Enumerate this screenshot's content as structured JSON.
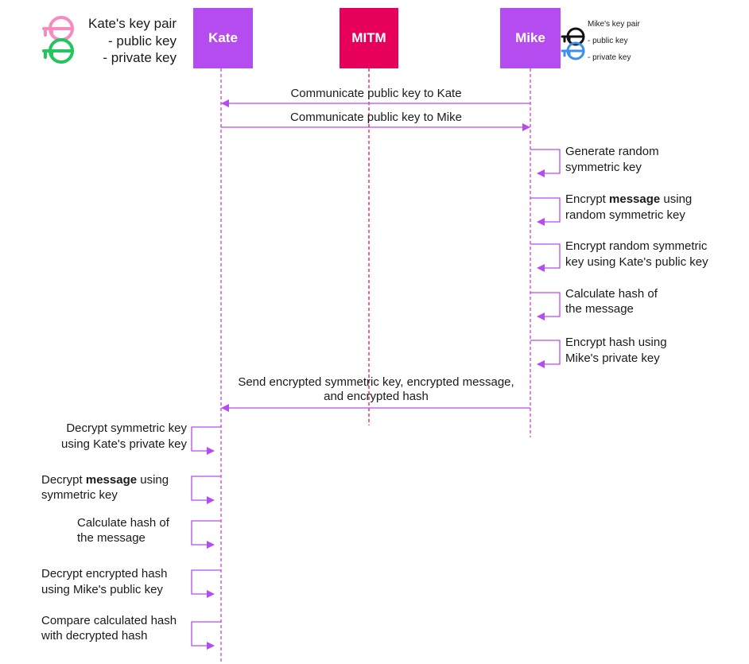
{
  "colors": {
    "lifeline": "#cc33cc",
    "arrow": "#b44cf0",
    "kate_box": "#b44cf0",
    "mitm_box": "#e6005a",
    "mike_box": "#b44cf0",
    "kate_public_key": "#f58bbf",
    "kate_private_key": "#22c55e",
    "mike_public_key": "#111111",
    "mike_private_key": "#3b8ff0"
  },
  "actors": {
    "kate": "Kate",
    "mitm": "MITM",
    "mike": "Mike"
  },
  "kate_legend": {
    "title": "Kate's key pair",
    "line1": "- public key",
    "line2": "- private key",
    "public_icon": "key-icon",
    "private_icon": "key-icon"
  },
  "mike_legend": {
    "title": "Mike's key pair",
    "line1": "- public key",
    "line2": "- private key",
    "public_icon": "key-icon",
    "private_icon": "key-icon"
  },
  "messages": {
    "m1": "Communicate public key to Kate",
    "m2": "Communicate public key to Mike",
    "m3_l1": "Send encrypted symmetric key, encrypted message,",
    "m3_l2": "and encrypted hash"
  },
  "mike_steps": {
    "s1_l1": "Generate random",
    "s1_l2": "symmetric key",
    "s2_pre": "Encrypt ",
    "s2_bold": "message",
    "s2_post": " using",
    "s2_l2": "random symmetric key",
    "s3_l1": "Encrypt random symmetric",
    "s3_l2": "key using Kate's public key",
    "s4_l1": "Calculate hash of",
    "s4_l2": "the message",
    "s5_l1": "Encrypt hash using",
    "s5_l2": "Mike's private key"
  },
  "kate_steps": {
    "s1_l1": "Decrypt symmetric key",
    "s1_l2": "using Kate's private key",
    "s2_pre": "Decrypt ",
    "s2_bold": "message",
    "s2_post": " using",
    "s2_l2": "symmetric key",
    "s3_l1": "Calculate hash of",
    "s3_l2": "the message",
    "s4_l1": "Decrypt encrypted hash",
    "s4_l2": "using Mike's public key",
    "s5_l1": "Compare calculated hash",
    "s5_l2": "with decrypted hash"
  }
}
